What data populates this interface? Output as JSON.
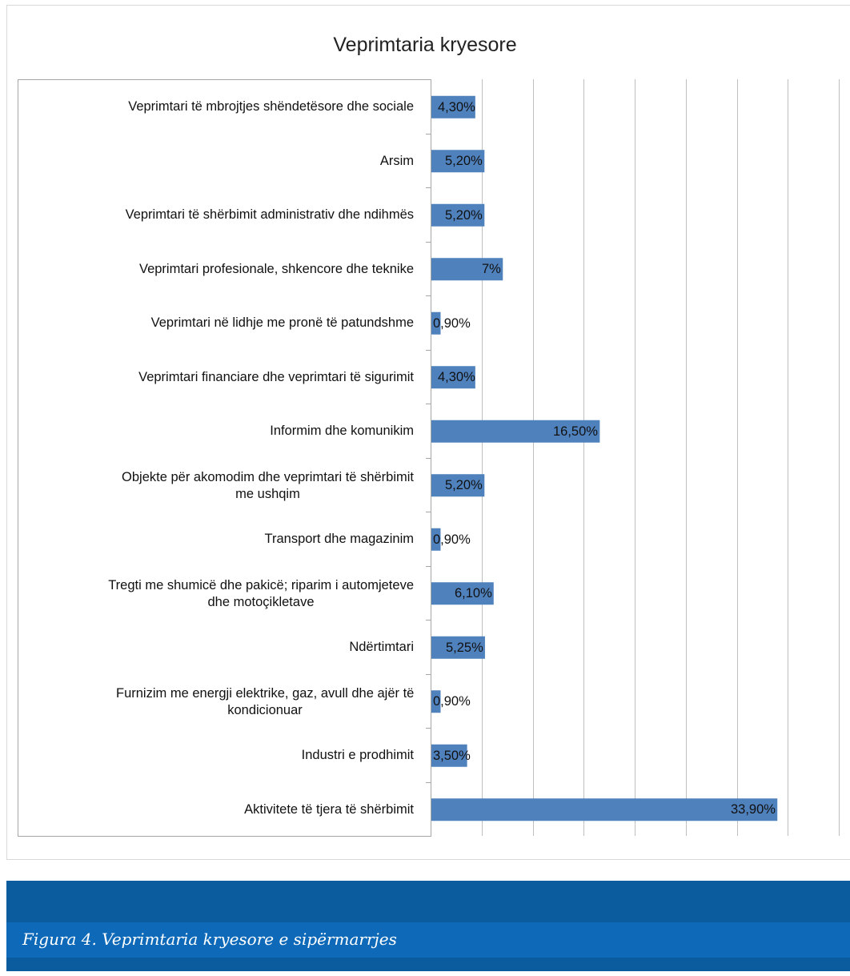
{
  "chart_data": {
    "type": "bar",
    "orientation": "horizontal",
    "title": "Veprimtaria kryesore",
    "categories": [
      [
        "Veprimtari të mbrojtjes shëndetësore dhe sociale"
      ],
      [
        "Arsim"
      ],
      [
        "Veprimtari të shërbimit administrativ dhe ndihmës"
      ],
      [
        "Veprimtari profesionale, shkencore dhe teknike"
      ],
      [
        "Veprimtari në lidhje me pronë të patundshme"
      ],
      [
        "Veprimtari financiare dhe veprimtari të sigurimit"
      ],
      [
        "Informim dhe komunikim"
      ],
      [
        "Objekte për akomodim dhe veprimtari të shërbimit",
        "me ushqim"
      ],
      [
        "Transport dhe magazinim"
      ],
      [
        "Tregti me shumicë dhe pakicë; riparim i automjeteve",
        "dhe motoçikletave"
      ],
      [
        "Ndërtimtari"
      ],
      [
        "Furnizim me energji elektrike, gaz, avull dhe ajër të",
        "kondicionuar"
      ],
      [
        "Industri e prodhimit"
      ],
      [
        "Aktivitete të tjera të shërbimit"
      ]
    ],
    "values": [
      4.3,
      5.2,
      5.2,
      7,
      0.9,
      4.3,
      16.5,
      5.2,
      0.9,
      6.1,
      5.25,
      0.9,
      3.5,
      33.9
    ],
    "value_labels": [
      "4,30%",
      "5,20%",
      "5,20%",
      "7%",
      "0,90%",
      "4,30%",
      "16,50%",
      "5,20%",
      "0,90%",
      "6,10%",
      "5,25%",
      "0,90%",
      "3,50%",
      "33,90%"
    ],
    "xlim": [
      0,
      40
    ],
    "x_gridline_step": 5,
    "grid": true,
    "legend": "none",
    "bar_color": "#4f81bd"
  },
  "caption": {
    "text": "Figura 4. Veprimtaria kryesore e sipërmarrjes"
  },
  "colors": {
    "caption_band": "#0b5c9e",
    "caption_strip": "#0e6ab8",
    "gridline": "#bfbfbf"
  }
}
